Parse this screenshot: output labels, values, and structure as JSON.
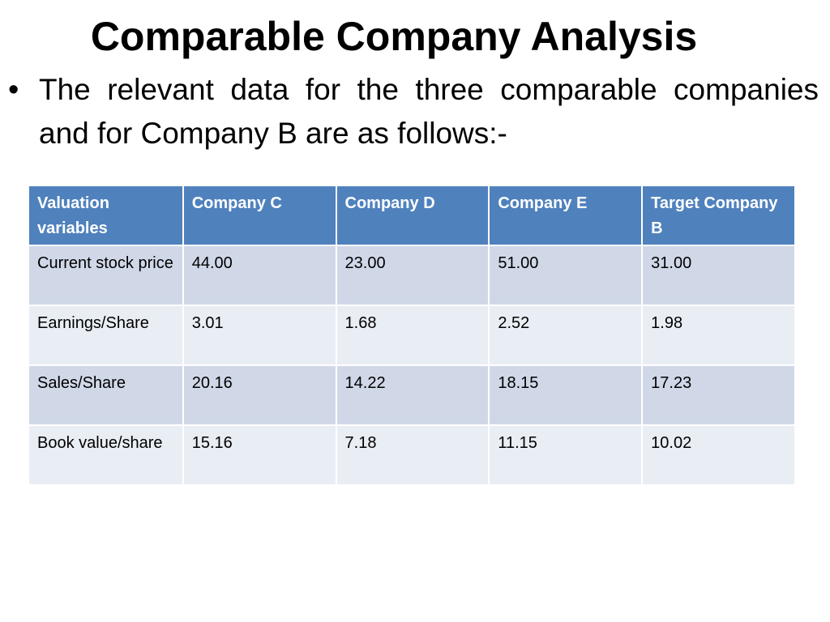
{
  "slide": {
    "title": "Comparable Company Analysis",
    "bullet_symbol": "•",
    "bullet_text": "The relevant data for the three comparable companies and for Company B are as follows:-"
  },
  "table": {
    "headers": [
      "Valuation variables",
      "Company C",
      "Company D",
      "Company E",
      "Target Company B"
    ],
    "rows": [
      [
        "Current stock price",
        "44.00",
        "23.00",
        "51.00",
        "31.00"
      ],
      [
        "Earnings/Share",
        "3.01",
        "1.68",
        "2.52",
        "1.98"
      ],
      [
        "Sales/Share",
        "20.16",
        "14.22",
        "18.15",
        "17.23"
      ],
      [
        "Book value/share",
        "15.16",
        "7.18",
        "11.15",
        "10.02"
      ]
    ]
  },
  "colors": {
    "header_bg": "#4f81bd",
    "row_band_dark": "#d0d8e8",
    "row_band_light": "#e9edf4"
  }
}
